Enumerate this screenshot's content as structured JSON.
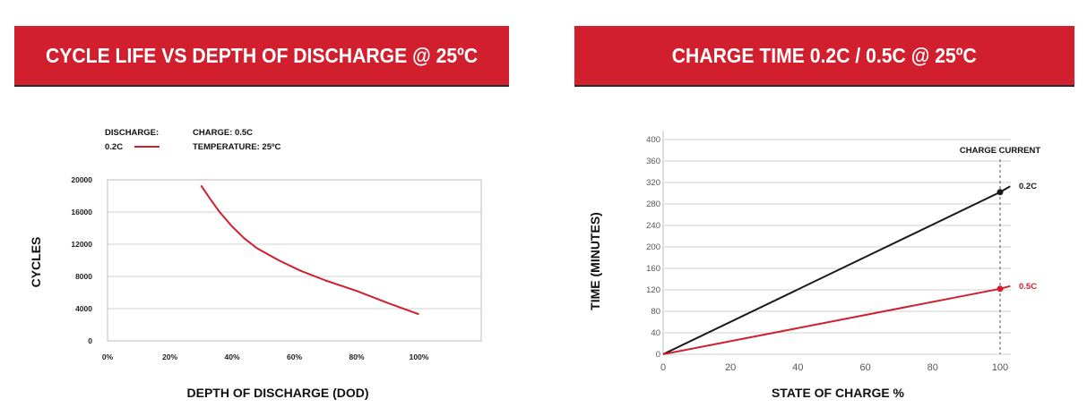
{
  "charts": [
    {
      "banner_title": "CYCLE LIFE VS DEPTH OF DISCHARGE @ 25ºC"
    },
    {
      "banner_title": "CHARGE TIME 0.2C / 0.5C @ 25ºC"
    }
  ],
  "colors": {
    "brand_red": "#d21f2e",
    "series_red": "#d21f2e",
    "series_black": "#1a1a1a",
    "grid": "#d0d0d0"
  },
  "chart_data": [
    {
      "type": "line",
      "title": "CYCLE LIFE VS DEPTH OF DISCHARGE @ 25ºC",
      "xlabel": "DEPTH OF DISCHARGE (DOD)",
      "ylabel": "CYCLES",
      "xlim": [
        0,
        120
      ],
      "ylim": [
        0,
        20000
      ],
      "x_ticks": [
        "0%",
        "20%",
        "40%",
        "60%",
        "80%",
        "100%"
      ],
      "x_tick_values": [
        0,
        20,
        40,
        60,
        80,
        100
      ],
      "y_ticks": [
        "0",
        "4000",
        "8000",
        "12000",
        "16000",
        "20000"
      ],
      "y_tick_values": [
        0,
        4000,
        8000,
        12000,
        16000,
        20000
      ],
      "grid": "horizontal",
      "legend": {
        "discharge_label": "DISCHARGE:",
        "series_label": "0.2C",
        "charge_note": "CHARGE: 0.5C",
        "temperature_note": "TEMPERATURE: 25ºC"
      },
      "series": [
        {
          "name": "0.2C",
          "x": [
            30,
            33,
            36,
            40,
            44,
            48,
            55,
            62,
            70,
            80,
            90,
            100
          ],
          "y": [
            19300,
            17600,
            16000,
            14200,
            12700,
            11500,
            10000,
            8700,
            7500,
            6200,
            4700,
            3300
          ]
        }
      ]
    },
    {
      "type": "line",
      "title": "CHARGE TIME 0.2C / 0.5C @ 25ºC",
      "xlabel": "STATE OF CHARGE %",
      "ylabel": "TIME (MINUTES)",
      "xlim": [
        0,
        102
      ],
      "ylim": [
        0,
        400
      ],
      "x_ticks": [
        "0",
        "20",
        "40",
        "60",
        "80",
        "100"
      ],
      "x_tick_values": [
        0,
        20,
        40,
        60,
        80,
        100
      ],
      "y_ticks": [
        "0",
        "40",
        "80",
        "120",
        "160",
        "200",
        "240",
        "280",
        "320",
        "360",
        "400"
      ],
      "y_tick_values": [
        0,
        40,
        80,
        120,
        160,
        200,
        240,
        280,
        320,
        360,
        400
      ],
      "grid": "horizontal",
      "annotation": "CHARGE CURRENT",
      "marker_x": 100,
      "series": [
        {
          "name": "0.2C",
          "x": [
            0,
            100,
            103
          ],
          "y": [
            0,
            302,
            313
          ],
          "color_key": "series_black"
        },
        {
          "name": "0.5C",
          "x": [
            0,
            100,
            103
          ],
          "y": [
            0,
            122,
            127
          ],
          "color_key": "series_red"
        }
      ]
    }
  ]
}
